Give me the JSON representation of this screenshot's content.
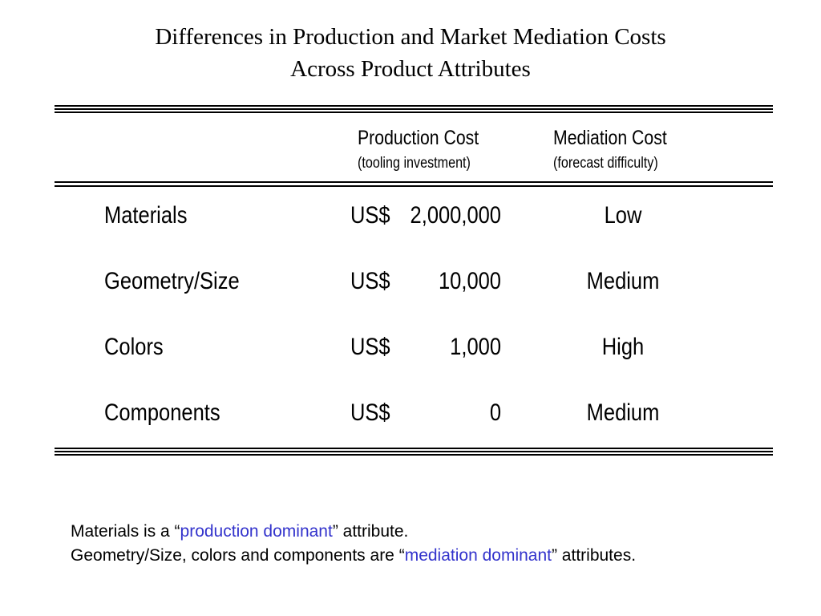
{
  "title": {
    "line1": "Differences in Production and Market Mediation Costs",
    "line2": "Across Product Attributes"
  },
  "table": {
    "headers": {
      "production": {
        "main": "Production Cost",
        "sub": "(tooling investment)"
      },
      "mediation": {
        "main": "Mediation Cost",
        "sub": "(forecast difficulty)"
      }
    },
    "rows": [
      {
        "label": "Materials",
        "currency": "US$",
        "amount": "2,000,000",
        "mediation": "Low"
      },
      {
        "label": "Geometry/Size",
        "currency": "US$",
        "amount": "10,000",
        "mediation": "Medium"
      },
      {
        "label": "Colors",
        "currency": "US$",
        "amount": "1,000",
        "mediation": "High"
      },
      {
        "label": "Components",
        "currency": "US$",
        "amount": "0",
        "mediation": "Medium"
      }
    ]
  },
  "notes": {
    "line1": {
      "before": "Materials is a “",
      "highlight": "production dominant",
      "after": "” attribute."
    },
    "line2": {
      "before": "Geometry/Size, colors and components are “",
      "highlight": "mediation dominant",
      "after": "” attributes."
    }
  },
  "colors": {
    "highlight": "#3333cc"
  }
}
